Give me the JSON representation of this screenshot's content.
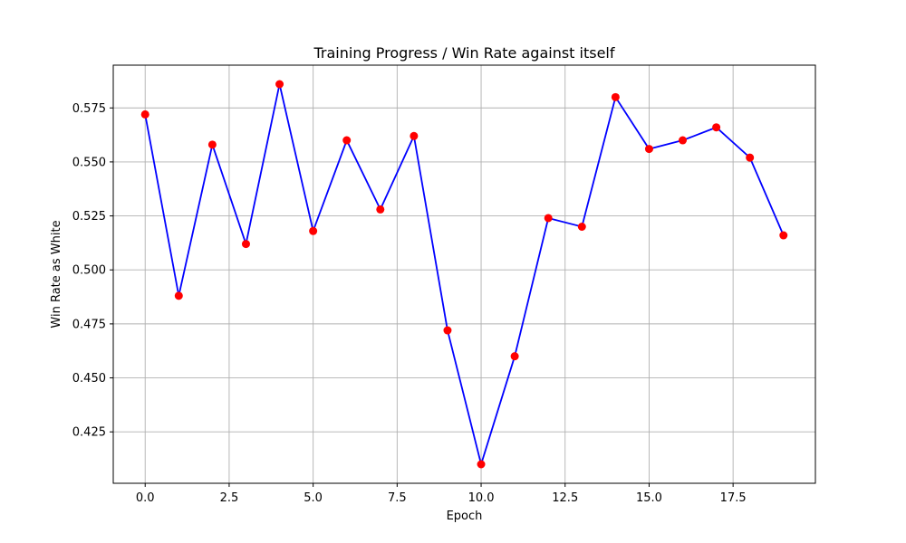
{
  "chart_data": {
    "type": "line",
    "title": "Training Progress / Win Rate against itself",
    "xlabel": "Epoch",
    "ylabel": "Win Rate as White",
    "xlim": [
      -0.95,
      19.95
    ],
    "ylim": [
      0.4012,
      0.5948
    ],
    "xticks": [
      0,
      2.5,
      5,
      7.5,
      10,
      12.5,
      15,
      17.5
    ],
    "xtick_labels": [
      "0.0",
      "2.5",
      "5.0",
      "7.5",
      "10.0",
      "12.5",
      "15.0",
      "17.5"
    ],
    "yticks": [
      0.425,
      0.45,
      0.475,
      0.5,
      0.525,
      0.55,
      0.575
    ],
    "ytick_labels": [
      "0.425",
      "0.450",
      "0.475",
      "0.500",
      "0.525",
      "0.550",
      "0.575"
    ],
    "grid": true,
    "series": [
      {
        "x": [
          0,
          1,
          2,
          3,
          4,
          5,
          6,
          7,
          8,
          9,
          10,
          11,
          12,
          13,
          14,
          15,
          16,
          17,
          18,
          19
        ],
        "values": [
          0.572,
          0.488,
          0.558,
          0.512,
          0.586,
          0.518,
          0.56,
          0.528,
          0.562,
          0.472,
          0.41,
          0.46,
          0.524,
          0.52,
          0.58,
          0.556,
          0.56,
          0.566,
          0.552,
          0.516
        ],
        "line_color": "#0000ff",
        "marker_color": "#ff0000"
      }
    ]
  }
}
